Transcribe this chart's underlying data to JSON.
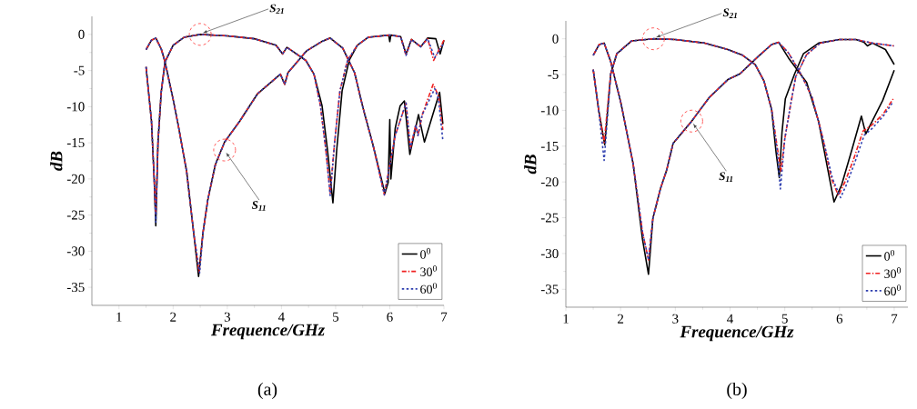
{
  "chart_data": [
    {
      "type": "line",
      "xlabel": "Frequence/GHz",
      "ylabel": "dB",
      "xlim": [
        0.5,
        7
      ],
      "ylim": [
        -37.5,
        2.5
      ],
      "xticks": [
        1,
        2,
        3,
        4,
        5,
        6,
        7
      ],
      "yticks": [
        0,
        -5,
        -10,
        -15,
        -20,
        -25,
        -30,
        -35
      ],
      "legend": "bottom right",
      "annotations": [
        {
          "text": "S$_{21}$",
          "x": 2.5,
          "y": 0
        },
        {
          "text": "S$_{11}$",
          "x": 2.95,
          "y": -16
        },
        "(a)"
      ],
      "series": [
        {
          "color": "#000000",
          "line_style": "solid",
          "x": [
            1.5,
            1.6,
            1.65,
            1.68,
            1.72,
            1.78,
            1.85,
            2.0,
            2.2,
            2.5,
            3.0,
            3.5,
            3.9,
            4.02,
            4.1,
            4.2,
            4.45,
            4.6,
            4.75,
            4.85,
            4.95,
            5.02,
            5.12,
            5.25,
            5.4,
            5.6,
            5.98,
            6.0,
            6.02,
            6.2,
            6.3,
            6.4,
            6.57,
            6.7,
            6.85,
            6.93,
            7.0
          ],
          "values": [
            -4.5,
            -12,
            -20,
            -26.5,
            -15,
            -8,
            -3.8,
            -1.5,
            -0.4,
            0,
            -0.2,
            -0.6,
            -1.5,
            -2.7,
            -1.8,
            -2.3,
            -3.6,
            -5.5,
            -9.9,
            -16,
            -23.3,
            -16,
            -7.8,
            -3.6,
            -1.5,
            -0.4,
            -0.1,
            -1,
            -0.1,
            -0.3,
            -2.7,
            -0.7,
            -1.7,
            -0.5,
            -0.6,
            -2.7,
            -0.8
          ]
        },
        {
          "color": "#f02020",
          "line_style": "dashed",
          "x": [
            1.5,
            1.6,
            1.65,
            1.68,
            1.72,
            1.78,
            1.85,
            2.0,
            2.2,
            2.5,
            3.0,
            3.5,
            3.9,
            4.02,
            4.1,
            4.2,
            4.45,
            4.6,
            4.72,
            4.82,
            4.9,
            4.98,
            5.08,
            5.22,
            5.4,
            5.6,
            6.0,
            6.2,
            6.3,
            6.4,
            6.57,
            6.7,
            6.81,
            7.0
          ],
          "values": [
            -4.5,
            -12,
            -20,
            -25,
            -15,
            -8,
            -3.8,
            -1.5,
            -0.4,
            0,
            -0.2,
            -0.6,
            -1.5,
            -2.7,
            -1.8,
            -2.3,
            -3.6,
            -5.5,
            -9.9,
            -16,
            -22,
            -15,
            -7.8,
            -3.6,
            -1.5,
            -0.4,
            -0.1,
            -0.3,
            -2.9,
            -0.7,
            -1.7,
            -0.6,
            -3.6,
            -0.8
          ]
        },
        {
          "color": "#3040b0",
          "line_style": "dotted",
          "x": [
            1.5,
            1.6,
            1.65,
            1.68,
            1.72,
            1.78,
            1.85,
            2.0,
            2.2,
            2.5,
            3.0,
            3.5,
            3.9,
            4.02,
            4.1,
            4.2,
            4.45,
            4.6,
            4.72,
            4.82,
            4.9,
            4.98,
            5.08,
            5.22,
            5.4,
            5.6,
            6.0,
            6.2,
            6.3,
            6.4,
            6.57,
            6.7,
            6.83,
            7.0
          ],
          "values": [
            -4.5,
            -12,
            -20,
            -26,
            -15,
            -8,
            -3.8,
            -1.5,
            -0.4,
            0,
            -0.2,
            -0.6,
            -1.5,
            -2.7,
            -1.8,
            -2.3,
            -3.6,
            -5.5,
            -9.9,
            -16,
            -22.3,
            -15,
            -7.8,
            -3.6,
            -1.5,
            -0.4,
            -0.1,
            -0.3,
            -2.9,
            -0.7,
            -1.7,
            -0.6,
            -3.2,
            -1.2
          ]
        },
        {
          "name": "0$^{0}$",
          "color": "#000000",
          "line_style": "solid",
          "x": [
            1.5,
            1.6,
            1.68,
            1.78,
            1.85,
            2.0,
            2.1,
            2.25,
            2.38,
            2.47,
            2.55,
            2.64,
            2.78,
            2.95,
            3.23,
            3.56,
            3.98,
            4.06,
            4.12,
            4.46,
            4.74,
            4.9,
            5.13,
            5.35,
            5.5,
            5.69,
            5.91,
            5.97,
            6.0,
            6.02,
            6.1,
            6.19,
            6.27,
            6.37,
            6.53,
            6.64,
            6.92,
            6.98
          ],
          "values": [
            -2.1,
            -0.8,
            -0.5,
            -2,
            -3.8,
            -9,
            -12.8,
            -19,
            -27.5,
            -33.5,
            -27.5,
            -22.9,
            -18,
            -14.9,
            -12,
            -8.2,
            -5.5,
            -6.9,
            -5.3,
            -2.3,
            -1,
            -0.5,
            -1.9,
            -5.3,
            -10,
            -15.3,
            -22,
            -20.5,
            -11.8,
            -20,
            -13,
            -9.9,
            -9.2,
            -16.6,
            -11.1,
            -14.9,
            -8,
            -12.4
          ]
        },
        {
          "name": "30$^{0}$",
          "color": "#f02020",
          "line_style": "dashed",
          "x": [
            1.5,
            1.6,
            1.68,
            1.78,
            1.85,
            2.0,
            2.1,
            2.25,
            2.38,
            2.48,
            2.55,
            2.64,
            2.78,
            2.95,
            3.23,
            3.56,
            3.98,
            4.06,
            4.12,
            4.46,
            4.74,
            4.9,
            5.13,
            5.35,
            5.5,
            5.69,
            5.9,
            6.1,
            6.3,
            6.38,
            6.48,
            6.52,
            6.6,
            6.8,
            6.9,
            6.98
          ],
          "values": [
            -2.1,
            -0.8,
            -0.5,
            -2,
            -3.8,
            -9,
            -12.8,
            -19,
            -27.5,
            -33,
            -27.5,
            -22.9,
            -18,
            -14.9,
            -12,
            -8.2,
            -5.5,
            -6.9,
            -5.3,
            -2.3,
            -1,
            -0.5,
            -1.9,
            -5.3,
            -10,
            -15.3,
            -22.2,
            -14,
            -9.5,
            -15.8,
            -12.5,
            -14,
            -11.1,
            -6.9,
            -8.5,
            -13.2
          ]
        },
        {
          "name": "60$^{0}$",
          "color": "#3040b0",
          "line_style": "dotted",
          "x": [
            1.5,
            1.6,
            1.68,
            1.78,
            1.85,
            2.0,
            2.1,
            2.25,
            2.38,
            2.49,
            2.55,
            2.64,
            2.78,
            2.95,
            3.23,
            3.56,
            3.98,
            4.06,
            4.12,
            4.46,
            4.74,
            4.9,
            5.13,
            5.35,
            5.5,
            5.69,
            5.9,
            6.1,
            6.3,
            6.38,
            6.48,
            6.52,
            6.6,
            6.83,
            6.9,
            6.98
          ],
          "values": [
            -2.1,
            -0.8,
            -0.5,
            -2,
            -3.8,
            -9,
            -12.8,
            -19,
            -27.5,
            -33,
            -27.5,
            -22.9,
            -18,
            -14.9,
            -12,
            -8.2,
            -5.5,
            -6.9,
            -5.3,
            -2.3,
            -1,
            -0.5,
            -1.9,
            -5.3,
            -10,
            -15.3,
            -22.2,
            -14,
            -9.5,
            -15.8,
            -12.5,
            -14,
            -11.1,
            -7.5,
            -9,
            -14.7
          ]
        }
      ]
    },
    {
      "type": "line",
      "xlabel": "Frequence/GHz",
      "ylabel": "dB",
      "xlim": [
        1,
        7.25
      ],
      "ylim": [
        -37.5,
        2.5
      ],
      "xticks": [
        1,
        2,
        3,
        4,
        5,
        6,
        7
      ],
      "yticks": [
        0,
        -5,
        -10,
        -15,
        -20,
        -25,
        -30,
        -35
      ],
      "legend": "bottom right",
      "annotations": [
        {
          "text": "S$_{21}$",
          "x": 2.6,
          "y": 0
        },
        {
          "text": "S$_{11}$",
          "x": 3.3,
          "y": -11.5
        },
        "(b)"
      ],
      "series": [
        {
          "color": "#000000",
          "line_style": "solid",
          "x": [
            1.5,
            1.6,
            1.71,
            1.82,
            1.93,
            2.2,
            2.6,
            3.0,
            3.54,
            3.96,
            4.23,
            4.46,
            4.62,
            4.76,
            4.84,
            4.9,
            4.95,
            5.01,
            5.18,
            5.34,
            5.62,
            6.0,
            6.3,
            6.45,
            6.51,
            6.6,
            6.84,
            7.0
          ],
          "values": [
            -4.3,
            -10,
            -14.8,
            -4.9,
            -2.1,
            -0.3,
            0,
            -0.1,
            -0.6,
            -1.5,
            -2.3,
            -3.6,
            -5.9,
            -9.9,
            -15.8,
            -19.4,
            -13,
            -8.4,
            -4.9,
            -2.1,
            -0.6,
            -0.1,
            -0.1,
            -0.5,
            -1,
            -0.6,
            -1.5,
            -3.6
          ]
        },
        {
          "color": "#f02020",
          "line_style": "dashed",
          "x": [
            1.5,
            1.6,
            1.7,
            1.82,
            1.93,
            2.2,
            2.6,
            3.0,
            3.54,
            3.96,
            4.23,
            4.46,
            4.62,
            4.76,
            4.86,
            4.93,
            5.0,
            5.1,
            5.2,
            5.4,
            5.65,
            6.0,
            6.3,
            6.6,
            6.8,
            7.0
          ],
          "values": [
            -4.3,
            -10,
            -14.5,
            -4.9,
            -2.1,
            -0.3,
            0,
            -0.1,
            -0.6,
            -1.5,
            -2.3,
            -3.6,
            -5.9,
            -9.9,
            -15,
            -18.5,
            -14,
            -9.5,
            -5.3,
            -2.2,
            -0.6,
            -0.1,
            -0.1,
            -0.6,
            -0.8,
            -1
          ]
        },
        {
          "color": "#3040b0",
          "line_style": "dotted",
          "x": [
            1.5,
            1.6,
            1.7,
            1.82,
            1.93,
            2.2,
            2.6,
            3.0,
            3.54,
            3.96,
            4.23,
            4.46,
            4.62,
            4.76,
            4.86,
            4.92,
            5.0,
            5.1,
            5.2,
            5.4,
            5.65,
            6.0,
            6.3,
            6.6,
            6.8,
            7.0
          ],
          "values": [
            -4.3,
            -10,
            -17,
            -4.9,
            -2.1,
            -0.3,
            0,
            -0.1,
            -0.6,
            -1.5,
            -2.3,
            -3.6,
            -5.9,
            -9.9,
            -15.5,
            -21,
            -14,
            -9.5,
            -5.3,
            -2.2,
            -0.6,
            -0.1,
            -0.1,
            -0.6,
            -0.8,
            -1
          ]
        },
        {
          "name": "0$^{0}$",
          "color": "#000000",
          "line_style": "solid",
          "x": [
            1.5,
            1.61,
            1.7,
            1.82,
            2.01,
            2.23,
            2.4,
            2.51,
            2.59,
            2.73,
            2.84,
            2.96,
            3.29,
            3.62,
            3.96,
            4.18,
            4.51,
            4.76,
            4.89,
            5.07,
            5.4,
            5.62,
            5.79,
            5.9,
            6.04,
            6.23,
            6.4,
            6.48,
            6.79,
            7.0
          ],
          "values": [
            -2.3,
            -0.8,
            -0.6,
            -3.2,
            -9.1,
            -17.5,
            -28,
            -32.9,
            -25.1,
            -20.9,
            -18.4,
            -14.6,
            -11.6,
            -8.2,
            -5.7,
            -4.9,
            -2.5,
            -0.8,
            -0.5,
            -2.7,
            -6.1,
            -11.6,
            -18.4,
            -22.8,
            -20.4,
            -15.4,
            -10.8,
            -13.3,
            -8.6,
            -4.4
          ]
        },
        {
          "name": "30$^{0}$",
          "color": "#f02020",
          "line_style": "dashed",
          "x": [
            1.5,
            1.61,
            1.7,
            1.82,
            2.01,
            2.23,
            2.4,
            2.51,
            2.59,
            2.73,
            2.84,
            2.96,
            3.29,
            3.62,
            3.96,
            4.18,
            4.51,
            4.76,
            4.89,
            5.07,
            5.3,
            5.5,
            5.7,
            5.85,
            5.98,
            6.1,
            6.25,
            6.43,
            6.6,
            6.8,
            6.98
          ],
          "values": [
            -2.3,
            -0.8,
            -0.6,
            -3.2,
            -9.1,
            -17.5,
            -27,
            -30.9,
            -25.1,
            -20.9,
            -18.4,
            -14.6,
            -11.6,
            -8.2,
            -5.7,
            -4.9,
            -2.5,
            -0.8,
            -0.5,
            -2,
            -5,
            -8.2,
            -14,
            -19.5,
            -21.9,
            -20,
            -17,
            -12.9,
            -12,
            -10.5,
            -8.4
          ]
        },
        {
          "name": "60$^{0}$",
          "color": "#3040b0",
          "line_style": "dotted",
          "x": [
            1.5,
            1.61,
            1.7,
            1.82,
            2.01,
            2.23,
            2.4,
            2.51,
            2.59,
            2.73,
            2.84,
            2.96,
            3.29,
            3.62,
            3.96,
            4.18,
            4.51,
            4.76,
            4.89,
            5.07,
            5.3,
            5.5,
            5.7,
            5.87,
            6.02,
            6.12,
            6.27,
            6.45,
            6.6,
            6.8,
            6.98
          ],
          "values": [
            -2.3,
            -0.8,
            -0.6,
            -3.2,
            -9.1,
            -17.5,
            -27,
            -30.9,
            -25.1,
            -20.9,
            -18.4,
            -14.6,
            -11.6,
            -8.2,
            -5.7,
            -4.9,
            -2.5,
            -0.8,
            -0.5,
            -2,
            -5,
            -8.2,
            -14,
            -19.5,
            -22.2,
            -20.5,
            -17.5,
            -13.5,
            -12.5,
            -10.8,
            -8.8
          ]
        }
      ]
    }
  ]
}
